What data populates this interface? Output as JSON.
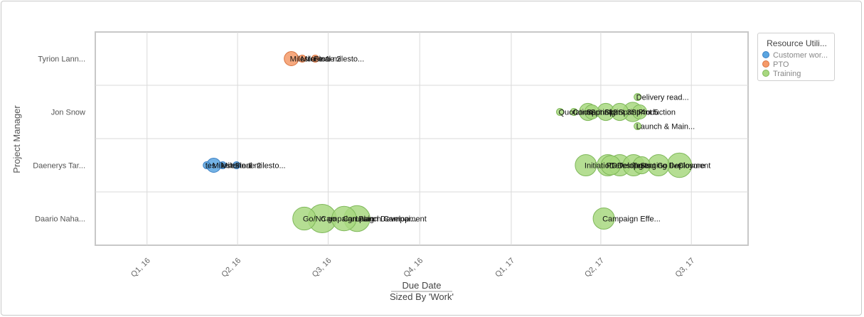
{
  "chart_data": {
    "type": "bubble",
    "title": "",
    "xlabel": "Due Date",
    "xsublabel": "Sized By 'Work'",
    "ylabel": "Project Manager",
    "grid": true,
    "legend_position": "top-right",
    "categories": [
      "Tyrion Lann...",
      "Jon Snow",
      "Daenerys Tar...",
      "Daario Naha..."
    ],
    "x_ticks": [
      "Q1, 16",
      "Q2, 16",
      "Q3, 16",
      "Q4, 16",
      "Q1, 17",
      "Q2, 17",
      "Q3, 17"
    ],
    "x_range": [
      "2015-11-10",
      "2017-08-27"
    ],
    "legend": {
      "title": "Resource Utili...",
      "colors": {
        "Customer wor...": "#5aa5e0",
        "PTO": "#f59a69",
        "Training": "#a8d880"
      }
    },
    "series": [
      {
        "name": "Customer wor...",
        "points": [
          {
            "category": "Daenerys Tar...",
            "x": "2016-03-01",
            "size": 1,
            "label": "tes"
          },
          {
            "category": "Daenerys Tar...",
            "x": "2016-03-08",
            "size": 2,
            "label": "Milestone 1"
          },
          {
            "category": "Daenerys Tar...",
            "x": "2016-03-17",
            "size": 1,
            "label": "Milestone 2"
          },
          {
            "category": "Daenerys Tar...",
            "x": "2016-03-31",
            "size": 1,
            "label": "Final milesto..."
          }
        ]
      },
      {
        "name": "PTO",
        "points": [
          {
            "category": "Tyrion Lann...",
            "x": "2016-05-25",
            "size": 2,
            "label": "Milestone 1"
          },
          {
            "category": "Tyrion Lann...",
            "x": "2016-06-05",
            "size": 1,
            "label": "Milestone 2"
          },
          {
            "category": "Tyrion Lann...",
            "x": "2016-06-18",
            "size": 1,
            "label": "Final milesto..."
          }
        ]
      },
      {
        "name": "Training",
        "points": [
          {
            "category": "Jon Snow",
            "x": "2017-02-19",
            "size": 1,
            "label": "Quotation"
          },
          {
            "category": "Jon Snow",
            "x": "2017-03-05",
            "size": 1,
            "label": "Contract Sign"
          },
          {
            "category": "Jon Snow",
            "x": "2017-03-19",
            "size": 3,
            "label": "Sprint 1"
          },
          {
            "category": "Jon Snow",
            "x": "2017-03-23",
            "size": 2,
            "label": "Sprint 2"
          },
          {
            "category": "Jon Snow",
            "x": "2017-04-06",
            "size": 3,
            "label": "Sprint 3"
          },
          {
            "category": "Jon Snow",
            "x": "2017-04-20",
            "size": 3,
            "label": "Sprint 4"
          },
          {
            "category": "Jon Snow",
            "x": "2017-05-03",
            "size": 4,
            "label": "Sprint 5"
          },
          {
            "category": "Jon Snow",
            "x": "2017-05-08",
            "size": 1,
            "label": "Delivery read..."
          },
          {
            "category": "Jon Snow",
            "x": "2017-05-10",
            "size": 2,
            "label": "Production"
          },
          {
            "category": "Jon Snow",
            "x": "2017-05-08",
            "size": 1,
            "label": "Launch & Main..."
          },
          {
            "category": "Daenerys Tar...",
            "x": "2017-03-17",
            "size": 5,
            "label": "Initiation"
          },
          {
            "category": "Daenerys Tar...",
            "x": "2017-04-08",
            "size": 5,
            "label": "PDD"
          },
          {
            "category": "Daenerys Tar...",
            "x": "2017-04-11",
            "size": 4,
            "label": "Development"
          },
          {
            "category": "Daenerys Tar...",
            "x": "2017-04-20",
            "size": 5,
            "label": "Testing"
          },
          {
            "category": "Daenerys Tar...",
            "x": "2017-05-04",
            "size": 5,
            "label": "Tests"
          },
          {
            "category": "Daenerys Tar...",
            "x": "2017-05-12",
            "size": 3,
            "label": "Staging Deployment"
          },
          {
            "category": "Daenerys Tar...",
            "x": "2017-05-29",
            "size": 5,
            "label": "Go live"
          },
          {
            "category": "Daenerys Tar...",
            "x": "2017-06-19",
            "size": 7,
            "label": "Closure"
          },
          {
            "category": "Daario Naha...",
            "x": "2016-06-07",
            "size": 6,
            "label": "Go/No go"
          },
          {
            "category": "Daario Naha...",
            "x": "2016-06-25",
            "size": 10,
            "label": "Campaign Plan"
          },
          {
            "category": "Daario Naha...",
            "x": "2016-07-17",
            "size": 7,
            "label": "Campaign Development"
          },
          {
            "category": "Daario Naha...",
            "x": "2016-07-30",
            "size": 8,
            "label": "Launch Campai..."
          },
          {
            "category": "Daario Naha...",
            "x": "2017-04-04",
            "size": 5,
            "label": "Campaign Effe..."
          }
        ]
      }
    ]
  }
}
